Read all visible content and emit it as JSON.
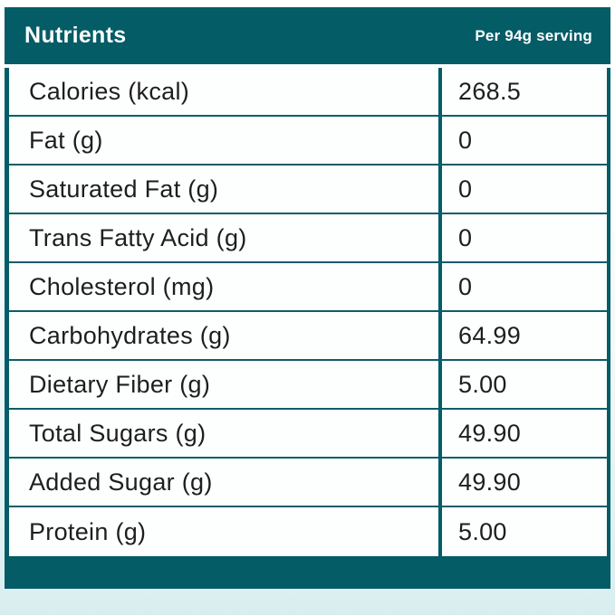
{
  "header": {
    "title": "Nutrients",
    "serving": "Per 94g serving"
  },
  "rows": [
    {
      "label": "Calories (kcal)",
      "value": "268.5"
    },
    {
      "label": "Fat (g)",
      "value": "0"
    },
    {
      "label": "Saturated Fat (g)",
      "value": "0"
    },
    {
      "label": "Trans Fatty Acid (g)",
      "value": "0"
    },
    {
      "label": "Cholesterol (mg)",
      "value": "0"
    },
    {
      "label": "Carbohydrates (g)",
      "value": "64.99"
    },
    {
      "label": "Dietary Fiber (g)",
      "value": "5.00"
    },
    {
      "label": "Total Sugars (g)",
      "value": "49.90"
    },
    {
      "label": "Added Sugar (g)",
      "value": "49.90"
    },
    {
      "label": "Protein (g)",
      "value": "5.00"
    }
  ],
  "colors": {
    "teal": "#045c66",
    "row_background": "#fdfefe",
    "text": "#1e1e1e",
    "header_text": "#ffffff"
  },
  "chart_data": {
    "type": "table",
    "title": "Nutrients",
    "columns": [
      "Nutrients",
      "Per 94g serving"
    ],
    "rows": [
      [
        "Calories (kcal)",
        268.5
      ],
      [
        "Fat (g)",
        0
      ],
      [
        "Saturated Fat (g)",
        0
      ],
      [
        "Trans Fatty Acid (g)",
        0
      ],
      [
        "Cholesterol (mg)",
        0
      ],
      [
        "Carbohydrates (g)",
        64.99
      ],
      [
        "Dietary Fiber (g)",
        5.0
      ],
      [
        "Total Sugars (g)",
        49.9
      ],
      [
        "Added Sugar (g)",
        49.9
      ],
      [
        "Protein (g)",
        5.0
      ]
    ]
  }
}
